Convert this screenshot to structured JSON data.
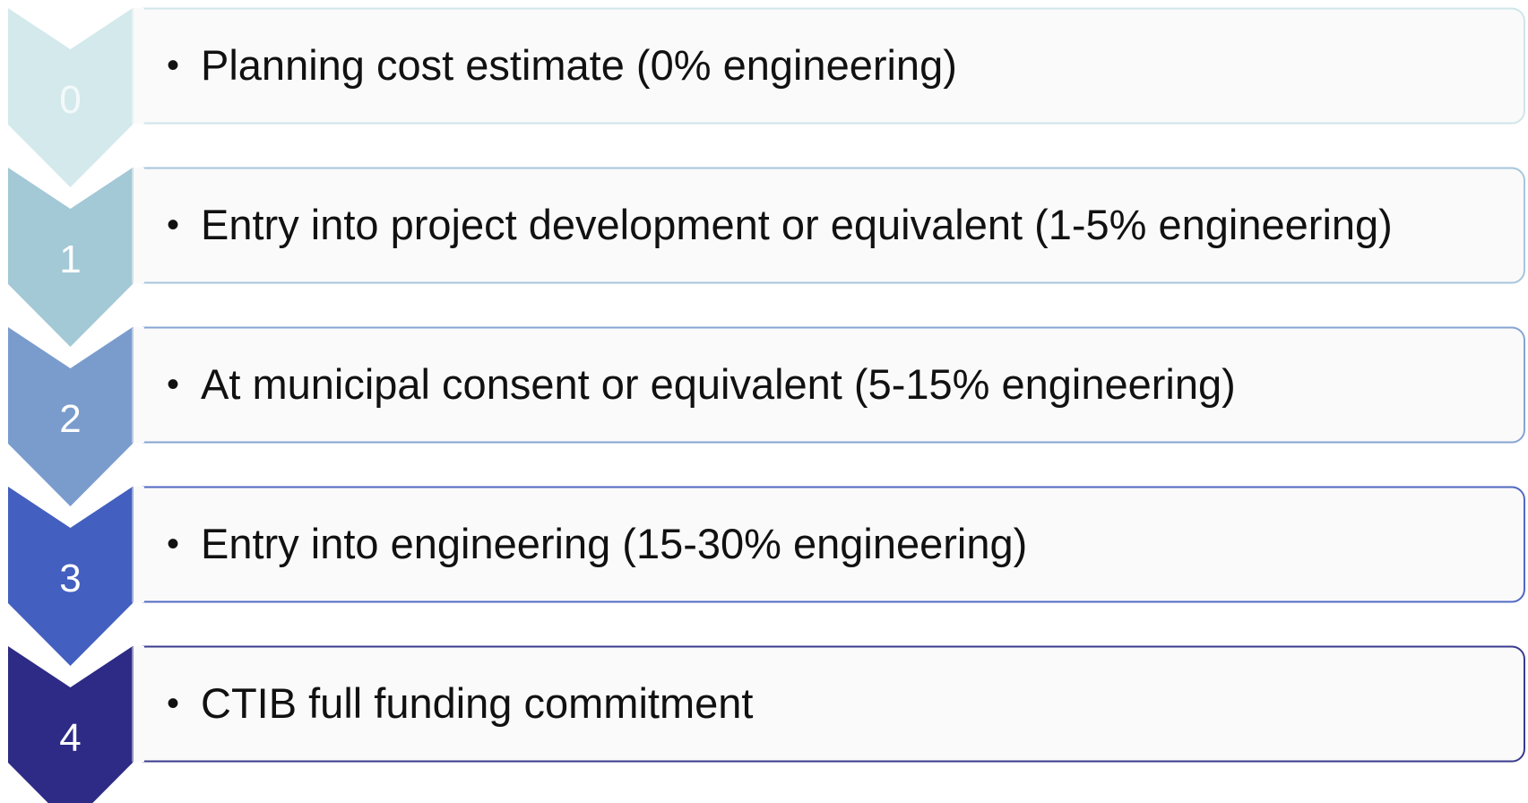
{
  "steps": [
    {
      "number": "0",
      "text": "Planning cost estimate (0% engineering)"
    },
    {
      "number": "1",
      "text": "Entry into project development or equivalent (1-5% engineering)"
    },
    {
      "number": "2",
      "text": "At municipal consent or equivalent (5-15% engineering)"
    },
    {
      "number": "3",
      "text": "Entry into engineering (15-30% engineering)"
    },
    {
      "number": "4",
      "text": "CTIB full funding commitment"
    }
  ]
}
